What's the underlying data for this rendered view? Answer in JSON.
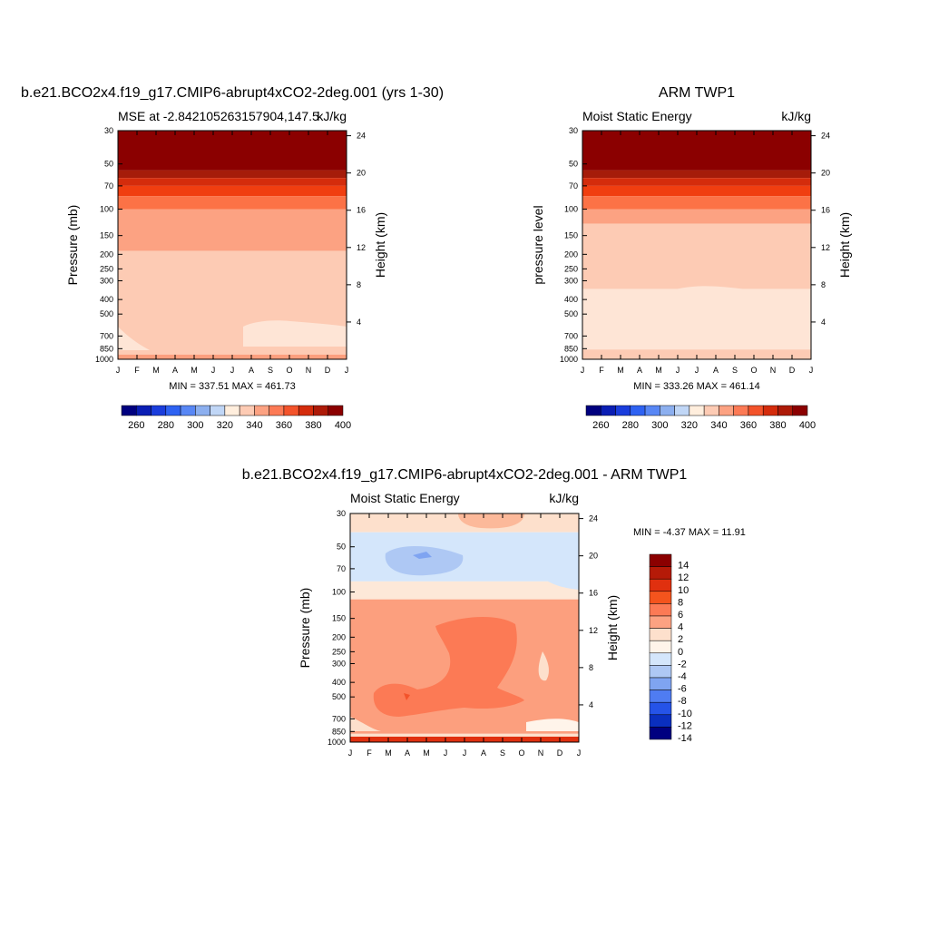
{
  "chart_data": [
    {
      "type": "heatmap",
      "title": "b.e21.BCO2x4.f19_g17.CMIP6-abrupt4xCO2-2deg.001 (yrs 1-30)",
      "left_subtitle": "MSE at -2.842105263157904,147.5",
      "right_subtitle": "kJ/kg",
      "ylabel": "Pressure (mb)",
      "ylabel_right": "Height (km)",
      "x_ticks": [
        "J",
        "F",
        "M",
        "A",
        "M",
        "J",
        "J",
        "A",
        "S",
        "O",
        "N",
        "D",
        "J"
      ],
      "y_ticks": [
        "30",
        "50",
        "70",
        "100",
        "150",
        "200",
        "250",
        "300",
        "400",
        "500",
        "700",
        "850",
        "1000"
      ],
      "y_ticks_right": [
        "24",
        "20",
        "16",
        "12",
        "8",
        "4"
      ],
      "min_max": "MIN = 337.51 MAX = 461.73",
      "colorbar_labels": [
        "260",
        "280",
        "300",
        "320",
        "340",
        "360",
        "380",
        "400"
      ],
      "bands": [
        {
          "top": 30,
          "bottom": 55,
          "color": "#8b0000"
        },
        {
          "top": 55,
          "bottom": 62,
          "color": "#a51c0a"
        },
        {
          "top": 62,
          "bottom": 70,
          "color": "#d42c0c"
        },
        {
          "top": 70,
          "bottom": 82,
          "color": "#f03e10"
        },
        {
          "top": 82,
          "bottom": 100,
          "color": "#fc7246"
        },
        {
          "top": 100,
          "bottom": 190,
          "color": "#fca282"
        },
        {
          "top": 190,
          "bottom": 930,
          "color": "#fdcbb4"
        },
        {
          "top": 930,
          "bottom": 1000,
          "color": "#fc9f7e"
        }
      ]
    },
    {
      "type": "heatmap",
      "title": "ARM TWP1",
      "left_subtitle": "Moist Static Energy",
      "right_subtitle": "kJ/kg",
      "ylabel": "pressure level",
      "ylabel_right": "Height (km)",
      "x_ticks": [
        "J",
        "F",
        "M",
        "A",
        "M",
        "J",
        "J",
        "A",
        "S",
        "O",
        "N",
        "D",
        "J"
      ],
      "y_ticks": [
        "30",
        "50",
        "70",
        "100",
        "150",
        "200",
        "250",
        "300",
        "400",
        "500",
        "700",
        "850",
        "1000"
      ],
      "y_ticks_right": [
        "24",
        "20",
        "16",
        "12",
        "8",
        "4"
      ],
      "min_max": "MIN = 333.26 MAX = 461.14",
      "colorbar_labels": [
        "260",
        "280",
        "300",
        "320",
        "340",
        "360",
        "380",
        "400"
      ],
      "bands": [
        {
          "top": 30,
          "bottom": 55,
          "color": "#8b0000"
        },
        {
          "top": 55,
          "bottom": 62,
          "color": "#a51c0a"
        },
        {
          "top": 62,
          "bottom": 70,
          "color": "#d42c0c"
        },
        {
          "top": 70,
          "bottom": 82,
          "color": "#f03e10"
        },
        {
          "top": 82,
          "bottom": 100,
          "color": "#fc7246"
        },
        {
          "top": 100,
          "bottom": 125,
          "color": "#fca282"
        },
        {
          "top": 125,
          "bottom": 340,
          "color": "#fdcbb4"
        },
        {
          "top": 340,
          "bottom": 860,
          "color": "#fee5d6"
        },
        {
          "top": 860,
          "bottom": 1000,
          "color": "#fdcbb4"
        }
      ]
    },
    {
      "type": "heatmap",
      "title": "b.e21.BCO2x4.f19_g17.CMIP6-abrupt4xCO2-2deg.001 - ARM TWP1",
      "left_subtitle": "Moist Static Energy",
      "right_subtitle": "kJ/kg",
      "ylabel": "Pressure (mb)",
      "ylabel_right": "Height (km)",
      "x_ticks": [
        "J",
        "F",
        "M",
        "A",
        "M",
        "J",
        "J",
        "A",
        "S",
        "O",
        "N",
        "D",
        "J"
      ],
      "y_ticks": [
        "30",
        "50",
        "70",
        "100",
        "150",
        "200",
        "250",
        "300",
        "400",
        "500",
        "700",
        "850",
        "1000"
      ],
      "y_ticks_right": [
        "24",
        "20",
        "16",
        "12",
        "8",
        "4"
      ],
      "min_max": "MIN =  -4.37 MAX =  11.91",
      "colorbar_labels": [
        "14",
        "12",
        "10",
        "8",
        "6",
        "4",
        "2",
        "0",
        "-2",
        "-4",
        "-6",
        "-8",
        "-10",
        "-12",
        "-14"
      ],
      "bands": [
        {
          "top": 30,
          "bottom": 40,
          "color": "#fde0cc"
        },
        {
          "top": 40,
          "bottom": 85,
          "color": "#d4e6fb"
        },
        {
          "top": 85,
          "bottom": 112,
          "color": "#fde8d8"
        },
        {
          "top": 112,
          "bottom": 880,
          "color": "#fc9f7e"
        },
        {
          "top": 880,
          "bottom": 950,
          "color": "#fde0cc"
        },
        {
          "top": 950,
          "bottom": 1000,
          "color": "#f2601f"
        }
      ]
    }
  ],
  "colors": {
    "seq_colorbar": [
      "#00007f",
      "#0a1eb4",
      "#1a3ddc",
      "#2e62f2",
      "#5887f5",
      "#8cafef",
      "#c0d6f6",
      "#ffeedd",
      "#fdcbb4",
      "#fca282",
      "#fc7a55",
      "#f3532b",
      "#d42c0c",
      "#ad1a08",
      "#8b0000"
    ],
    "diff_colorbar": [
      "#8b0000",
      "#b51a08",
      "#e0300f",
      "#f4541d",
      "#fc7a55",
      "#fca282",
      "#fde0cc",
      "#fff4ea",
      "#d4e6fb",
      "#aec8f4",
      "#7fa4f1",
      "#4f7cf2",
      "#2553e8",
      "#0a2fbf",
      "#000080"
    ]
  }
}
